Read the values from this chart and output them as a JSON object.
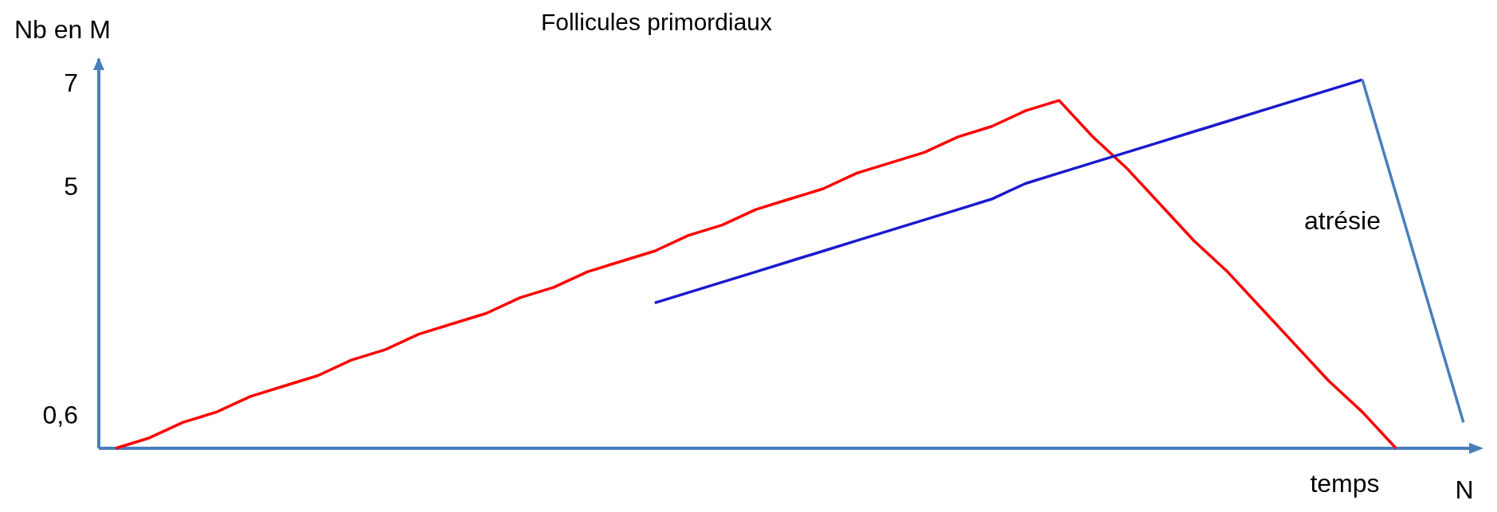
{
  "chart_data": {
    "type": "line",
    "title": "Follicules primordiaux",
    "ylabel": "Nb en M",
    "xlabel": "temps",
    "marker": "none",
    "line_style": "solid",
    "categories": [
      null,
      null,
      null,
      null,
      null,
      null,
      null,
      null,
      null,
      null,
      null,
      null,
      null,
      null,
      null,
      null,
      null,
      null,
      null,
      null,
      null,
      null,
      null,
      null,
      null,
      null,
      null,
      null,
      null,
      null,
      null,
      null,
      null,
      null,
      null,
      null,
      null,
      null,
      null,
      null,
      null
    ],
    "ylim": [
      0,
      7.5
    ],
    "yticks": [
      {
        "value": 0.6,
        "label": "0,6"
      },
      5,
      7
    ],
    "series": [
      {
        "color": "#ff0000",
        "values": [
          0,
          0.2,
          0.5,
          0.7,
          1,
          1.2,
          1.4,
          1.7,
          1.9,
          2.2,
          2.4,
          2.6,
          2.9,
          3.1,
          3.4,
          3.6,
          3.8,
          4.1,
          4.3,
          4.6,
          4.8,
          5,
          5.3,
          5.5,
          5.7,
          6,
          6.2,
          6.5,
          6.7,
          6,
          5.4,
          4.7,
          4,
          3.4,
          2.7,
          2,
          1.3,
          0.7,
          0,
          null,
          null
        ]
      },
      {
        "color": "#1a1acd",
        "values": [
          null,
          null,
          null,
          null,
          null,
          null,
          null,
          null,
          null,
          null,
          null,
          null,
          null,
          null,
          null,
          null,
          2.8,
          3,
          3.2,
          3.4,
          3.6,
          3.8,
          4,
          4.2,
          4.4,
          4.6,
          4.8,
          5.1,
          5.3,
          5.5,
          5.7,
          5.9,
          6.1,
          6.3,
          6.5,
          6.7,
          6.9,
          7.1,
          null,
          null,
          null
        ]
      },
      {
        "color": "#4a7ebb",
        "values": [
          null,
          null,
          null,
          null,
          null,
          null,
          null,
          null,
          null,
          null,
          null,
          null,
          null,
          null,
          null,
          null,
          null,
          null,
          null,
          null,
          null,
          null,
          null,
          null,
          null,
          null,
          null,
          null,
          null,
          null,
          null,
          null,
          null,
          null,
          null,
          null,
          null,
          7.1,
          4.9,
          2.7,
          0.5
        ]
      }
    ],
    "annotations": [
      "atrésie",
      "N"
    ]
  }
}
